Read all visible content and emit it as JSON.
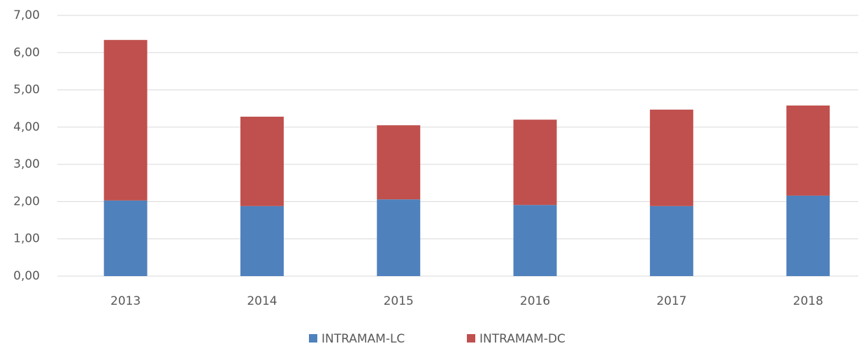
{
  "chart_data": {
    "type": "stacked_bar",
    "categories": [
      "2013",
      "2014",
      "2015",
      "2016",
      "2017",
      "2018"
    ],
    "series": [
      {
        "name": "INTRAMAM-LC",
        "color": "#4f81bd",
        "values": [
          2.03,
          1.88,
          2.06,
          1.91,
          1.88,
          2.16
        ]
      },
      {
        "name": "INTRAMAM-DC",
        "color": "#c0504d",
        "values": [
          4.31,
          2.4,
          1.99,
          2.29,
          2.59,
          2.42
        ]
      }
    ],
    "ylim": [
      0,
      7
    ],
    "yticks": [
      {
        "value": 0,
        "label": "0,00"
      },
      {
        "value": 1,
        "label": "1,00"
      },
      {
        "value": 2,
        "label": "2,00"
      },
      {
        "value": 3,
        "label": "3,00"
      },
      {
        "value": 4,
        "label": "4,00"
      },
      {
        "value": 5,
        "label": "5,00"
      },
      {
        "value": 6,
        "label": "6,00"
      },
      {
        "value": 7,
        "label": "7,00"
      }
    ],
    "grid": true,
    "legend": "bottom"
  }
}
